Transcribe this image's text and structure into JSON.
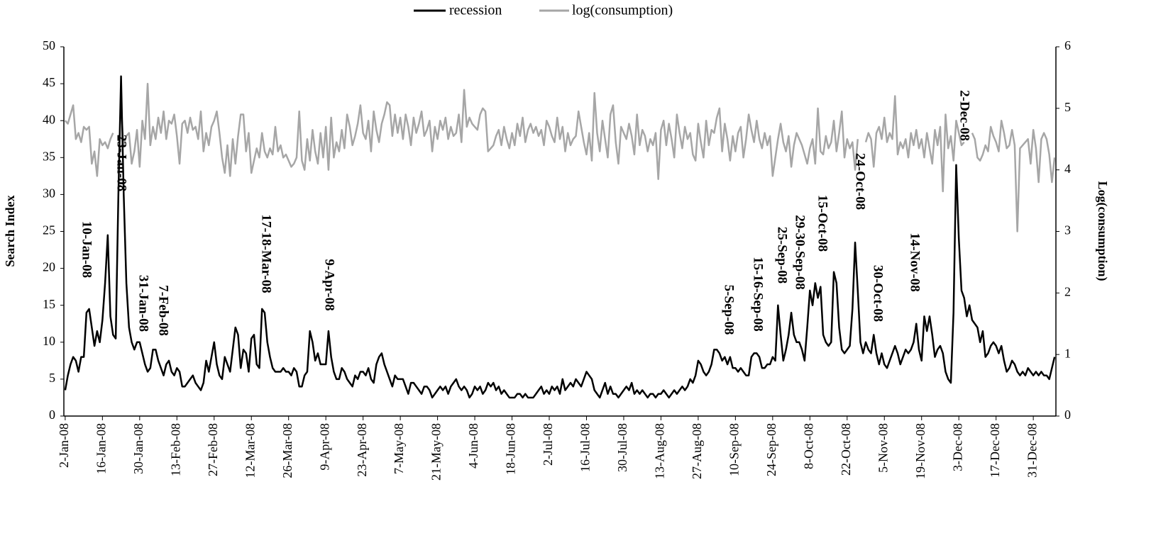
{
  "chart_data": {
    "type": "line",
    "ylabel": "Search Index",
    "y2label": "Log(consumption)",
    "legend": "top",
    "ylim": [
      0,
      50
    ],
    "yticks": [
      0,
      5,
      10,
      15,
      20,
      25,
      30,
      35,
      40,
      45,
      50
    ],
    "y2lim": [
      0,
      6
    ],
    "y2ticks": [
      0,
      1,
      2,
      3,
      4,
      5,
      6
    ],
    "categories": [
      "2-Jan-08",
      null,
      null,
      null,
      null,
      null,
      null,
      null,
      null,
      null,
      null,
      null,
      null,
      null,
      "16-Jan-08",
      null,
      null,
      null,
      null,
      null,
      null,
      null,
      null,
      null,
      null,
      null,
      null,
      null,
      "30-Jan-08",
      null,
      null,
      null,
      null,
      null,
      null,
      null,
      null,
      null,
      null,
      null,
      null,
      null,
      "13-Feb-08",
      null,
      null,
      null,
      null,
      null,
      null,
      null,
      null,
      null,
      null,
      null,
      null,
      null,
      "27-Feb-08",
      null,
      null,
      null,
      null,
      null,
      null,
      null,
      null,
      null,
      null,
      null,
      null,
      null,
      "12-Mar-08",
      null,
      null,
      null,
      null,
      null,
      null,
      null,
      null,
      null,
      null,
      null,
      null,
      null,
      "26-Mar-08",
      null,
      null,
      null,
      null,
      null,
      null,
      null,
      null,
      null,
      null,
      null,
      null,
      null,
      "9-Apr-08",
      null,
      null,
      null,
      null,
      null,
      null,
      null,
      null,
      null,
      null,
      null,
      null,
      null,
      "23-Apr-08",
      null,
      null,
      null,
      null,
      null,
      null,
      null,
      null,
      null,
      null,
      null,
      null,
      null,
      "7-May-08",
      null,
      null,
      null,
      null,
      null,
      null,
      null,
      null,
      null,
      null,
      null,
      null,
      null,
      "21-May-08",
      null,
      null,
      null,
      null,
      null,
      null,
      null,
      null,
      null,
      null,
      null,
      null,
      null,
      "4-Jun-08",
      null,
      null,
      null,
      null,
      null,
      null,
      null,
      null,
      null,
      null,
      null,
      null,
      null,
      "18-Jun-08",
      null,
      null,
      null,
      null,
      null,
      null,
      null,
      null,
      null,
      null,
      null,
      null,
      null,
      "2-Jul-08",
      null,
      null,
      null,
      null,
      null,
      null,
      null,
      null,
      null,
      null,
      null,
      null,
      null,
      "16-Jul-08",
      null,
      null,
      null,
      null,
      null,
      null,
      null,
      null,
      null,
      null,
      null,
      null,
      null,
      "30-Jul-08",
      null,
      null,
      null,
      null,
      null,
      null,
      null,
      null,
      null,
      null,
      null,
      null,
      null,
      "13-Aug-08",
      null,
      null,
      null,
      null,
      null,
      null,
      null,
      null,
      null,
      null,
      null,
      null,
      null,
      "27-Aug-08",
      null,
      null,
      null,
      null,
      null,
      null,
      null,
      null,
      null,
      null,
      null,
      null,
      null,
      "10-Sep-08",
      null,
      null,
      null,
      null,
      null,
      null,
      null,
      null,
      null,
      null,
      null,
      null,
      null,
      "24-Sep-08",
      null,
      null,
      null,
      null,
      null,
      null,
      null,
      null,
      null,
      null,
      null,
      null,
      null,
      "8-Oct-08",
      null,
      null,
      null,
      null,
      null,
      null,
      null,
      null,
      null,
      null,
      null,
      null,
      null,
      "22-Oct-08",
      null,
      null,
      null,
      null,
      null,
      null,
      null,
      null,
      null,
      null,
      null,
      null,
      null,
      "5-Nov-08",
      null,
      null,
      null,
      null,
      null,
      null,
      null,
      null,
      null,
      null,
      null,
      null,
      null,
      "19-Nov-08",
      null,
      null,
      null,
      null,
      null,
      null,
      null,
      null,
      null,
      null,
      null,
      null,
      null,
      "3-Dec-08",
      null,
      null,
      null,
      null,
      null,
      null,
      null,
      null,
      null,
      null,
      null,
      null,
      null,
      "17-Dec-08",
      null,
      null,
      null,
      null,
      null,
      null,
      null,
      null,
      null,
      null,
      null,
      null,
      null,
      "31-Dec-08",
      null,
      null,
      null,
      null,
      null,
      null,
      null,
      null
    ],
    "series": [
      {
        "name": "recession",
        "color": "#000000",
        "axis": "y",
        "values": [
          3.5,
          5.5,
          7,
          8,
          7.5,
          6,
          8,
          8,
          14,
          14.5,
          12,
          9.5,
          11.5,
          10,
          13,
          18,
          24.5,
          13.5,
          11,
          10.5,
          30,
          46,
          30,
          18,
          12,
          10,
          9,
          10,
          10,
          8.5,
          7,
          6,
          6.5,
          9,
          9,
          7.5,
          6.5,
          5.5,
          7,
          7.5,
          6,
          5.5,
          6.5,
          6,
          4,
          4,
          4.5,
          5,
          5.5,
          4.5,
          4,
          3.5,
          4.5,
          7.5,
          6,
          8,
          10,
          7,
          5.5,
          5,
          8,
          7,
          6,
          9,
          12,
          11,
          6.5,
          9,
          8.5,
          6,
          10.5,
          11,
          7,
          6.5,
          14.5,
          14,
          10,
          8,
          6.5,
          6,
          6,
          6,
          6.5,
          6,
          6,
          5.5,
          6.5,
          6,
          4,
          4,
          5.5,
          6,
          11.5,
          10,
          7.5,
          8.5,
          7,
          7,
          7,
          11.5,
          8,
          6,
          5,
          5,
          6.5,
          6,
          5,
          4.5,
          4,
          5.5,
          5,
          6,
          6,
          5.5,
          6.5,
          5,
          4.5,
          7,
          8,
          8.5,
          7,
          6,
          5,
          4,
          5.5,
          5,
          5,
          5,
          4,
          3,
          4.5,
          4.5,
          4,
          3.5,
          3,
          4,
          4,
          3.5,
          2.5,
          3,
          3.5,
          4,
          3.5,
          4,
          3,
          4,
          4.5,
          5,
          4,
          3.5,
          4,
          3.5,
          2.5,
          3,
          4,
          3.5,
          4,
          3,
          3.5,
          4.5,
          4,
          4.5,
          3.5,
          4,
          3,
          3.5,
          3,
          2.5,
          2.5,
          2.5,
          3,
          3,
          2.5,
          3,
          2.5,
          2.5,
          2.5,
          3,
          3.5,
          4,
          3,
          3.5,
          3,
          4,
          3.5,
          4,
          3,
          5,
          3.5,
          4,
          4.5,
          4,
          5,
          4.5,
          4,
          5,
          6,
          5.5,
          5,
          3.5,
          3,
          2.5,
          3.5,
          4.5,
          3,
          4,
          3,
          3,
          2.5,
          3,
          3.5,
          4,
          3.5,
          4.5,
          3,
          3.5,
          3,
          3.5,
          3,
          2.5,
          3,
          3,
          2.5,
          3,
          3,
          3.5,
          3,
          2.5,
          3,
          3.5,
          3,
          3.5,
          4,
          3.5,
          4,
          5,
          4.5,
          5.5,
          7.5,
          7,
          6,
          5.5,
          6,
          7,
          9,
          9,
          8.5,
          7.5,
          8,
          7,
          8,
          6.5,
          6.5,
          6,
          6.5,
          6,
          5.5,
          5.5,
          8,
          8.5,
          8.5,
          8,
          6.5,
          6.5,
          7,
          7,
          8,
          7.5,
          15,
          11,
          7.5,
          9,
          11,
          14,
          11,
          10,
          10,
          9,
          7.5,
          12,
          17,
          15,
          18,
          16,
          17.5,
          11,
          10,
          9.5,
          10,
          19.5,
          18,
          12,
          9,
          8.5,
          9,
          9.5,
          14.5,
          23.5,
          17,
          10,
          8.5,
          10,
          9,
          8.5,
          11,
          8.5,
          7,
          8.5,
          7,
          6.5,
          7.5,
          8.5,
          9.5,
          8.5,
          7,
          8,
          9,
          8.5,
          9,
          10,
          12.5,
          9,
          7.5,
          13.5,
          11.5,
          13.5,
          11,
          8,
          9,
          9.5,
          8.5,
          6,
          5,
          4.5,
          14,
          34,
          24,
          17,
          16,
          13.5,
          15,
          13,
          12.5,
          12,
          10,
          11.5,
          8,
          8.5,
          9.5,
          10,
          9.5,
          8.5,
          9.5,
          7.5,
          6,
          6.5,
          7.5,
          7,
          6,
          5.5,
          6,
          5.5,
          6.5,
          6,
          5.5,
          6,
          5.5,
          6,
          5.5,
          5.5,
          5,
          6.5,
          8
        ]
      },
      {
        "name": "log(consumption)",
        "color": "#a6a6a6",
        "axis": "y2",
        "values": [
          4.8,
          4.75,
          4.9,
          5.05,
          4.5,
          4.6,
          4.45,
          4.7,
          4.65,
          4.7,
          4.1,
          4.3,
          3.9,
          4.5,
          4.4,
          4.45,
          4.35,
          4.5,
          4.6,
          null,
          null,
          5.0,
          4.4,
          4.55,
          4.6,
          4.1,
          4.3,
          4.65,
          4.05,
          4.8,
          4.5,
          5.4,
          4.4,
          4.7,
          4.5,
          4.85,
          4.6,
          4.95,
          4.5,
          4.8,
          4.75,
          4.9,
          4.55,
          4.1,
          4.75,
          4.8,
          4.6,
          4.85,
          4.65,
          4.7,
          4.5,
          4.95,
          4.3,
          4.6,
          4.4,
          4.7,
          4.8,
          4.95,
          4.6,
          4.2,
          3.95,
          4.4,
          3.9,
          4.5,
          4.1,
          4.55,
          4.9,
          4.9,
          4.3,
          4.6,
          3.95,
          4.15,
          4.35,
          4.2,
          4.6,
          4.3,
          4.2,
          4.35,
          4.25,
          4.7,
          4.3,
          4.4,
          4.2,
          4.25,
          4.15,
          4.05,
          4.1,
          4.2,
          4.95,
          4.15,
          4.0,
          4.5,
          4.15,
          4.65,
          4.3,
          4.1,
          4.6,
          4.2,
          4.7,
          4.0,
          4.85,
          4.2,
          4.45,
          4.3,
          4.65,
          4.35,
          4.9,
          4.7,
          4.4,
          4.55,
          4.75,
          5.05,
          4.6,
          4.5,
          4.8,
          4.3,
          4.95,
          4.65,
          4.45,
          4.75,
          4.9,
          5.1,
          5.05,
          4.55,
          4.9,
          4.6,
          4.85,
          4.5,
          4.9,
          4.7,
          4.4,
          4.85,
          4.6,
          4.75,
          4.95,
          4.55,
          4.65,
          4.8,
          4.3,
          4.7,
          4.5,
          4.8,
          4.65,
          4.85,
          4.5,
          4.7,
          4.55,
          4.6,
          4.9,
          4.45,
          5.3,
          4.7,
          4.85,
          4.75,
          4.7,
          4.65,
          4.9,
          5.0,
          4.95,
          4.3,
          4.35,
          4.4,
          4.55,
          4.65,
          4.4,
          4.7,
          4.5,
          4.35,
          4.6,
          4.4,
          4.75,
          4.55,
          4.85,
          4.45,
          4.65,
          4.75,
          4.6,
          4.7,
          4.55,
          4.65,
          4.4,
          4.8,
          4.7,
          4.55,
          4.45,
          4.85,
          4.5,
          4.7,
          4.3,
          4.6,
          4.4,
          4.5,
          4.55,
          4.95,
          4.7,
          4.45,
          4.25,
          4.6,
          4.15,
          5.25,
          4.6,
          4.3,
          4.8,
          4.5,
          4.2,
          4.9,
          5.05,
          4.45,
          4.1,
          4.7,
          4.6,
          4.5,
          4.75,
          4.55,
          4.25,
          4.9,
          4.4,
          4.65,
          4.55,
          4.3,
          4.5,
          4.4,
          4.6,
          3.85,
          4.65,
          4.8,
          4.4,
          4.75,
          4.5,
          4.2,
          4.9,
          4.6,
          4.35,
          4.7,
          4.5,
          4.6,
          4.25,
          4.15,
          4.75,
          4.45,
          4.2,
          4.8,
          4.4,
          4.65,
          4.6,
          4.85,
          5.0,
          4.3,
          4.75,
          4.5,
          4.15,
          4.55,
          4.3,
          4.6,
          4.7,
          4.2,
          4.5,
          4.9,
          4.65,
          4.45,
          4.8,
          4.5,
          4.35,
          4.6,
          4.4,
          4.55,
          3.9,
          4.2,
          4.5,
          4.75,
          4.45,
          4.3,
          4.55,
          4.05,
          4.4,
          4.6,
          4.5,
          4.4,
          4.25,
          4.1,
          4.35,
          4.5,
          4.1,
          5.0,
          4.3,
          4.25,
          4.55,
          4.35,
          4.45,
          4.8,
          4.3,
          4.6,
          4.95,
          4.2,
          4.5,
          4.35,
          4.45,
          4.0,
          4.5,
          null,
          null,
          4.45,
          4.6,
          4.5,
          4.05,
          4.6,
          4.7,
          4.5,
          4.85,
          4.45,
          4.6,
          4.5,
          5.2,
          4.25,
          4.45,
          4.35,
          4.5,
          4.2,
          4.6,
          4.4,
          4.65,
          4.35,
          4.5,
          4.2,
          4.6,
          4.35,
          4.1,
          4.65,
          4.4,
          4.7,
          3.65,
          4.9,
          4.35,
          4.55,
          4.15,
          4.8,
          4.6,
          4.4,
          4.45,
          null,
          null,
          4.6,
          4.5,
          4.2,
          4.15,
          4.25,
          4.4,
          4.3,
          4.7,
          4.55,
          4.45,
          4.3,
          4.8,
          4.6,
          4.35,
          4.4,
          4.65,
          4.4,
          3.0,
          4.35,
          4.4,
          4.45,
          4.5,
          4.1,
          4.65,
          4.35,
          3.8,
          4.5,
          4.6,
          4.5,
          4.25,
          3.8,
          4.2
        ]
      }
    ],
    "annotations": [
      "10-Jan-08",
      "23-Jan-08",
      "31-Jan-08",
      "7-Feb-08",
      "17-18-Mar-08",
      "9-Apr-08",
      "5-Sep-08",
      "15-16-Sep-08",
      "25-Sep-08",
      "29-30-Sep-08",
      "15-Oct-08",
      "24-Oct-08",
      "30-Oct-08",
      "14-Nov-08",
      "2-Dec-08"
    ]
  }
}
